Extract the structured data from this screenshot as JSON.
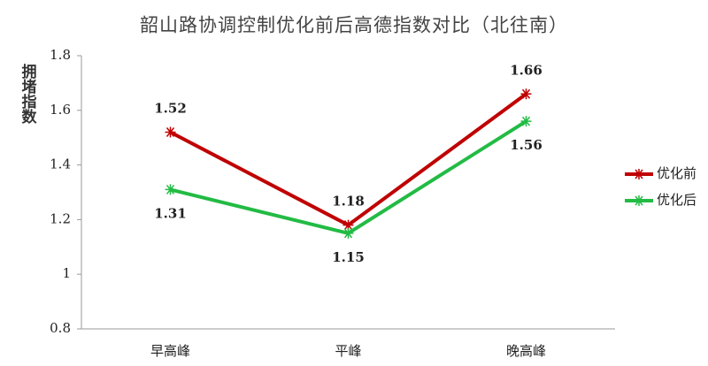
{
  "chart_data": {
    "type": "line",
    "title": "韶山路协调控制优化前后高德指数对比（北往南）",
    "y_label": "拥堵指数",
    "categories": [
      "早高峰",
      "平峰",
      "晚高峰"
    ],
    "series": [
      {
        "name": "优化前",
        "color": "#c00000",
        "values": [
          1.52,
          1.18,
          1.66
        ]
      },
      {
        "name": "优化后",
        "color": "#22bb44",
        "values": [
          1.31,
          1.15,
          1.56
        ]
      }
    ],
    "ylim": [
      0.8,
      1.8
    ],
    "yticks": [
      0.8,
      1,
      1.2,
      1.4,
      1.6,
      1.8
    ],
    "grid": false,
    "legend": "right"
  }
}
